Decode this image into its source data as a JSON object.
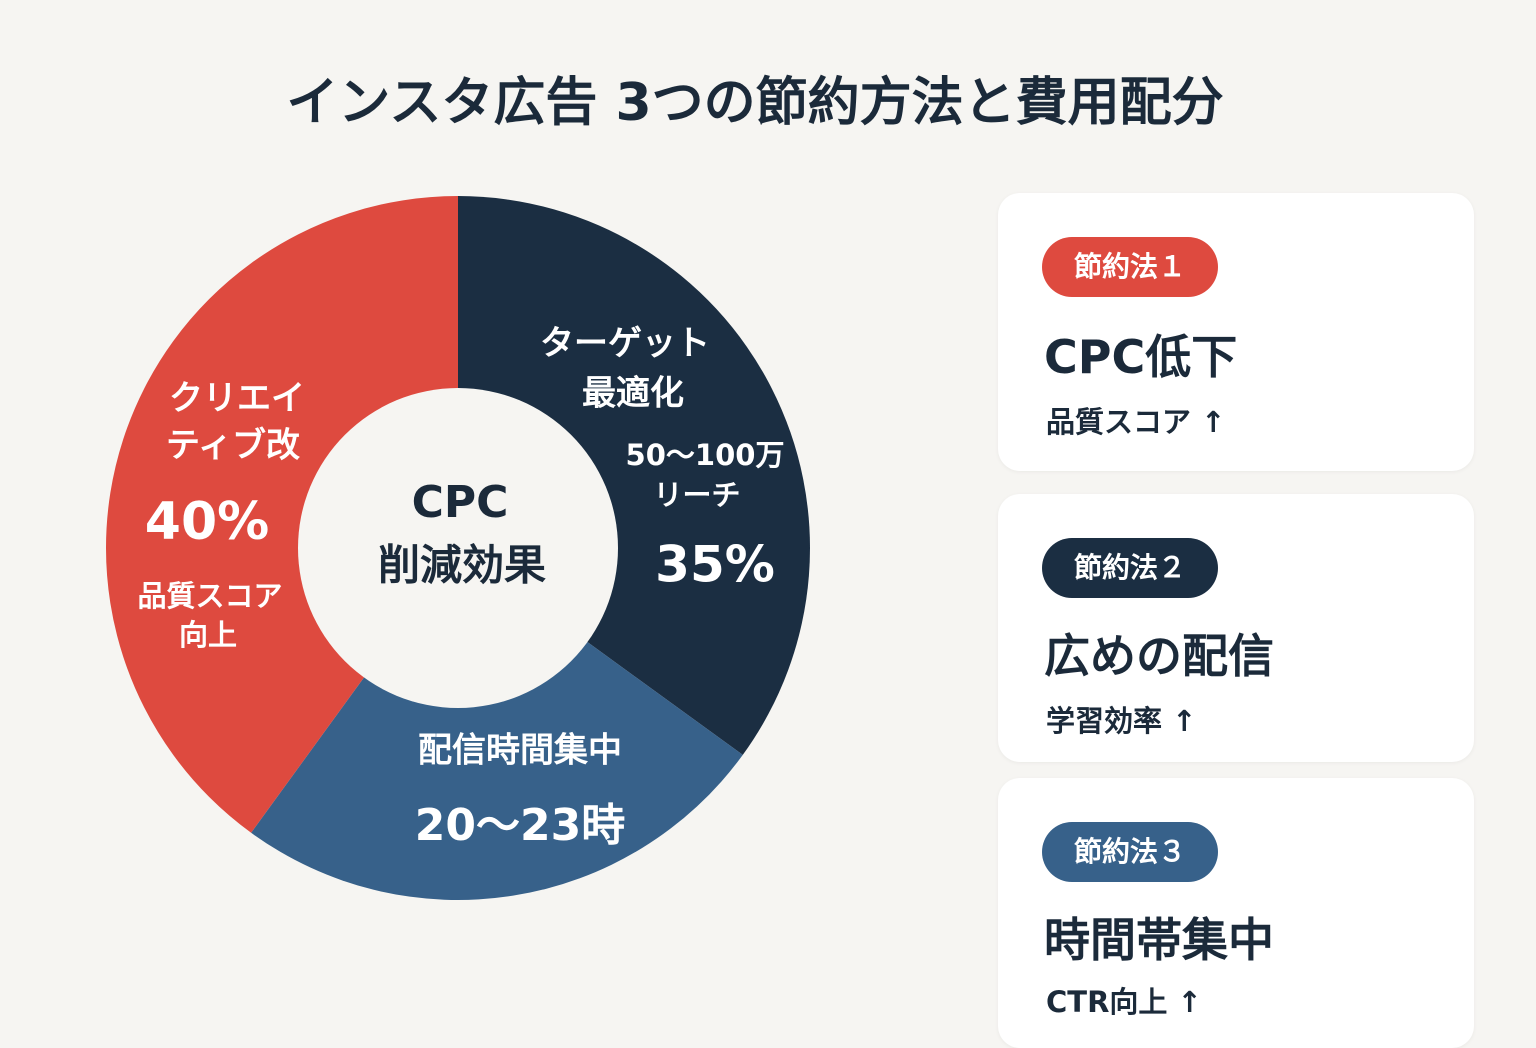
{
  "chart_data": {
    "type": "donut",
    "title": "インスタ広告 3つの節約方法と費用配分",
    "center_label": [
      "CPC",
      "削減効果"
    ],
    "segments": [
      {
        "name": [
          "ターゲット",
          "最適化"
        ],
        "detail": [
          "50～100万",
          "リーチ"
        ],
        "value": 35,
        "value_label": "35%",
        "color": "#1b2e42"
      },
      {
        "name": [
          "配信時間集中"
        ],
        "detail": [
          "20～23時"
        ],
        "value": 25,
        "color": "#37618a"
      },
      {
        "name": [
          "クリエイ",
          "ティブ改"
        ],
        "detail": [
          "品質スコア",
          "向上"
        ],
        "value": 40,
        "value_label": "40%",
        "color": "#de4a3f"
      }
    ]
  },
  "cards": [
    {
      "badge": "節約法１",
      "title": "CPC低下",
      "note": "品質スコア ↑"
    },
    {
      "badge": "節約法２",
      "title": "広めの配信",
      "note": "学習効率 ↑"
    },
    {
      "badge": "節約法３",
      "title": "時間帯集中",
      "note": "CTR向上 ↑"
    }
  ]
}
